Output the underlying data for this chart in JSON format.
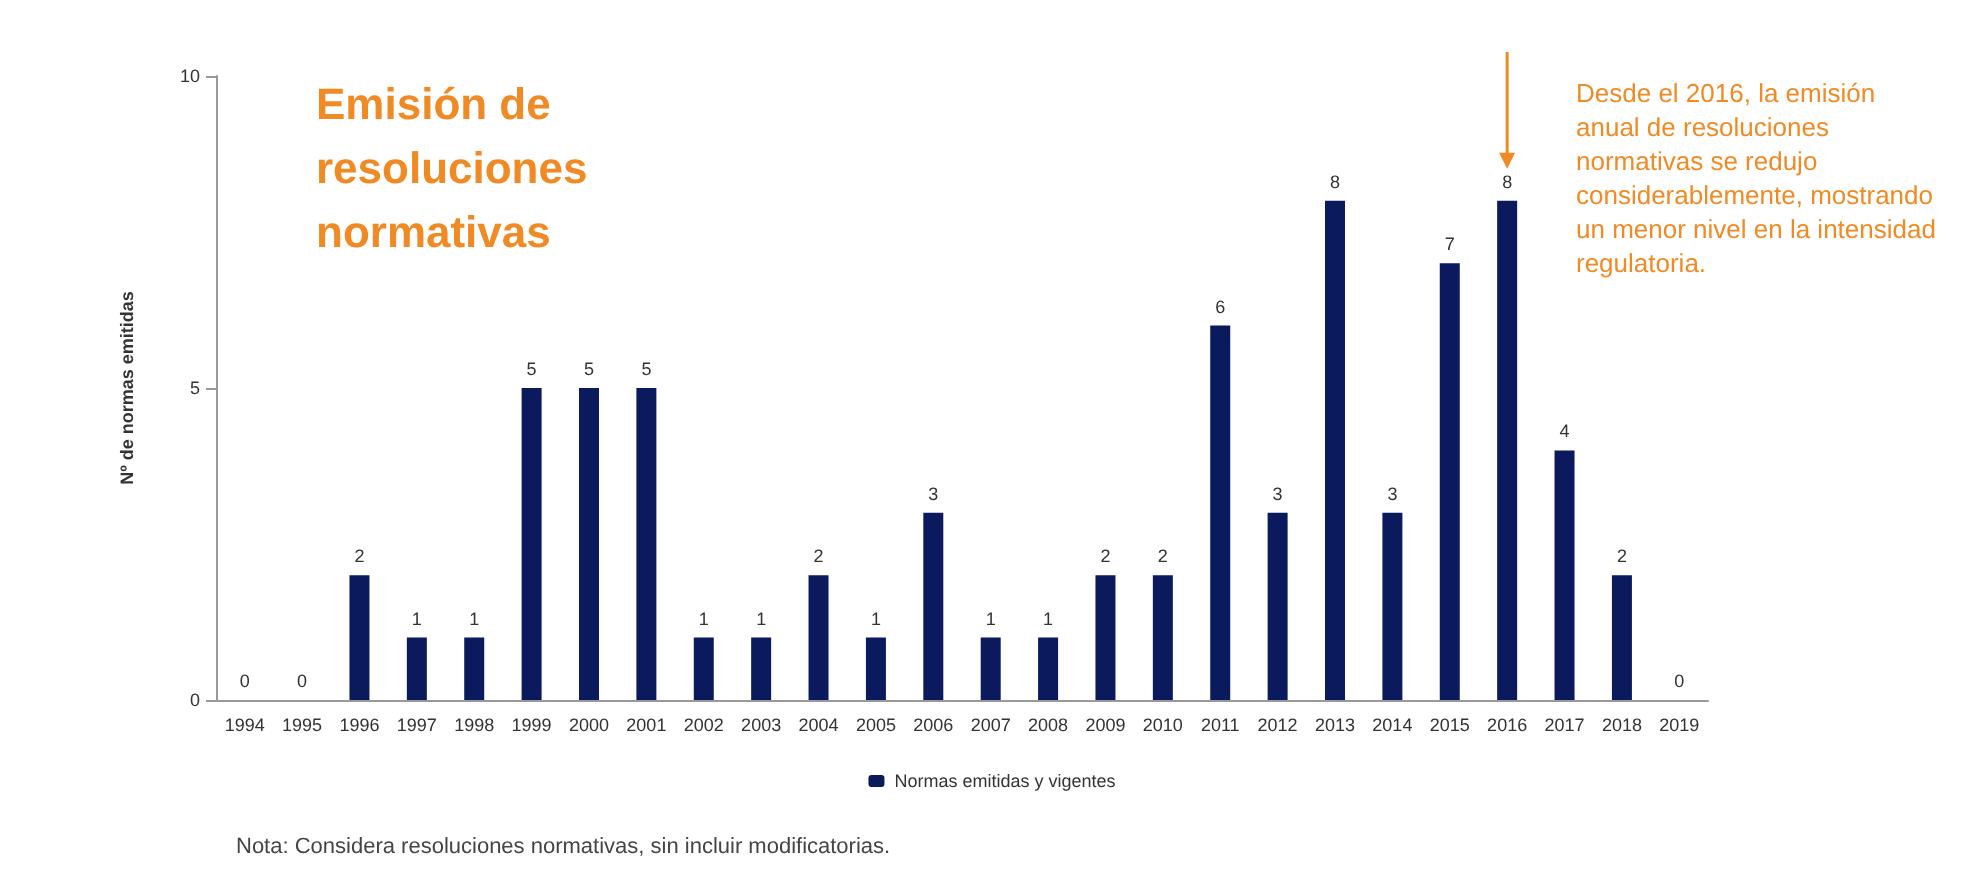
{
  "chart_data": {
    "type": "bar",
    "title": "Emisión de resoluciones normativas",
    "ylabel": "Nº de normas emitidas",
    "categories": [
      "1994",
      "1995",
      "1996",
      "1997",
      "1998",
      "1999",
      "2000",
      "2001",
      "2002",
      "2003",
      "2004",
      "2005",
      "2006",
      "2007",
      "2008",
      "2009",
      "2010",
      "2011",
      "2012",
      "2013",
      "2014",
      "2015",
      "2016",
      "2017",
      "2018",
      "2019"
    ],
    "series": [
      {
        "name": "Normas emitidas y vigentes",
        "color": "#0b1a5c",
        "values": [
          0,
          0,
          2,
          1,
          1,
          5,
          5,
          5,
          1,
          1,
          2,
          1,
          3,
          1,
          1,
          2,
          2,
          6,
          3,
          8,
          3,
          7,
          8,
          4,
          2,
          0
        ]
      }
    ],
    "ylim": [
      0,
      10
    ],
    "yticks": [
      0,
      5,
      10
    ],
    "grid": false,
    "legend": "bottom",
    "data_labels": true,
    "annotations": [
      {
        "text": "Desde el 2016, la emisión anual de resoluciones normativas se redujo considerablemente, mostrando un menor nivel en la intensidad regulatoria.",
        "x": "2016",
        "y": 8
      },
      "Nota: Considera resoluciones normativas, sin incluir modificatorias."
    ]
  }
}
